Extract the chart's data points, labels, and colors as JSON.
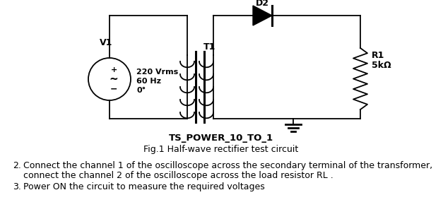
{
  "bg_color": "#ffffff",
  "title": "TS_POWER_10_TO_1",
  "fig_caption": "Fig.1 Half-wave rectifier test circuit",
  "step2": "Connect the channel 1 of the oscilloscope across the secondary terminal of the transformer,",
  "step2b": "connect the channel 2 of the oscilloscope across the load resistor RL .",
  "step3": "Power ON the circuit to measure the required voltages",
  "v1_label": "V1",
  "v1_line1": "220 Vrms",
  "v1_line2": "60 Hz",
  "v1_line3": "0°",
  "t1_label": "T1",
  "d2_label": "D2",
  "r1_label": "R1",
  "r1_value": "5kΩ"
}
